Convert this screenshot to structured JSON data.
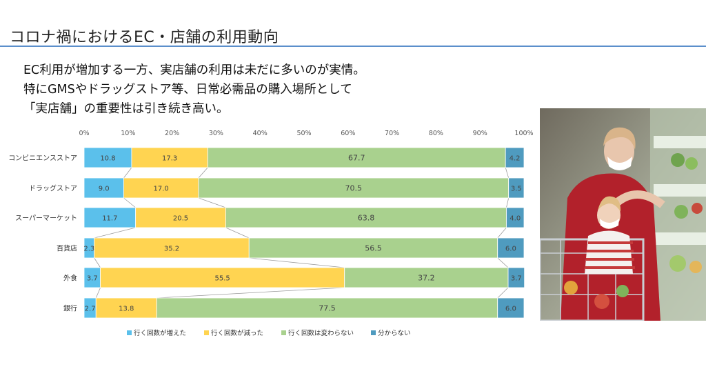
{
  "slide": {
    "title": "コロナ禍におけるEC・店舗の利用動向",
    "lead": [
      "EC利用が増加する一方、実店舗の利用は未だに多いのが実情。",
      "特にGMSやドラッグストア等、日常必需品の購入場所として",
      "「実店舗」の重要性は引き続き高い。"
    ]
  },
  "chart_data": {
    "type": "bar",
    "orientation": "horizontal",
    "stacked": "100%",
    "x_ticks": [
      "0%",
      "10%",
      "20%",
      "30%",
      "40%",
      "50%",
      "60%",
      "70%",
      "80%",
      "90%",
      "100%"
    ],
    "xlim": [
      0,
      100
    ],
    "categories": [
      "コンビニエンスストア",
      "ドラッグストア",
      "スーパーマーケット",
      "百貨店",
      "外食",
      "銀行"
    ],
    "series": [
      {
        "name": "行く回数が増えた",
        "color": "#5bc0eb",
        "values": [
          10.8,
          9.0,
          11.7,
          2.3,
          3.7,
          2.7
        ]
      },
      {
        "name": "行く回数が減った",
        "color": "#ffd451",
        "values": [
          17.3,
          17.0,
          20.5,
          35.2,
          55.5,
          13.8
        ]
      },
      {
        "name": "行く回数は変わらない",
        "color": "#a9d18e",
        "values": [
          67.7,
          70.5,
          63.8,
          56.5,
          37.2,
          77.5
        ]
      },
      {
        "name": "分からない",
        "color": "#4f9bbf",
        "values": [
          4.2,
          3.5,
          4.0,
          6.0,
          3.7,
          6.0
        ]
      }
    ],
    "value_labels": [
      [
        "10.8",
        "17.3",
        "67.7",
        "4.2"
      ],
      [
        "9.0",
        "17.0",
        "70.5",
        "3.5"
      ],
      [
        "11.7",
        "20.5",
        "63.8",
        "4.0"
      ],
      [
        "2.3",
        "35.2",
        "56.5",
        "6.0"
      ],
      [
        "3.7",
        "55.5",
        "37.2",
        "3.7"
      ],
      [
        "2.7",
        "13.8",
        "77.5",
        "6.0"
      ]
    ],
    "series_lines": true,
    "legend_position": "bottom"
  },
  "photo": {
    "icon": "shopping-photo"
  }
}
